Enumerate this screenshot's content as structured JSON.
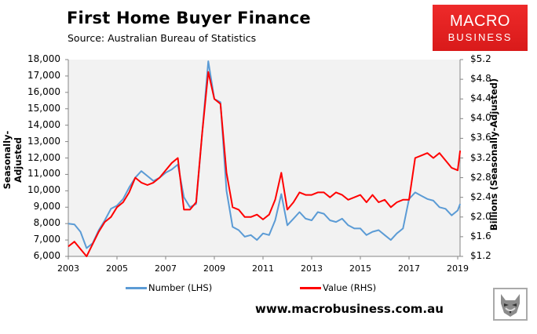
{
  "header": {
    "title": "First Home Buyer Finance",
    "subtitle": "Source: Australian Bureau of Statistics"
  },
  "logo": {
    "line1": "MACRO",
    "line2": "BUSINESS",
    "bg_color": "#e32222"
  },
  "footer": {
    "website": "www.macrobusiness.com.au",
    "mascot_icon": "wolf-icon"
  },
  "axes": {
    "left_label": "Seasonally-Adjusted",
    "right_label": "Billions (Seasonally-Adjusted)",
    "left_ticks": [
      "18,000",
      "17,000",
      "16,000",
      "15,000",
      "14,000",
      "13,000",
      "12,000",
      "11,000",
      "10,000",
      "9,000",
      "8,000",
      "7,000",
      "6,000"
    ],
    "right_ticks": [
      "$5.2",
      "$4.8",
      "$4.4",
      "$4.0",
      "$3.6",
      "$3.2",
      "$2.8",
      "$2.4",
      "$2.0",
      "$1.6",
      "$1.2"
    ],
    "x_ticks": [
      "2003",
      "2005",
      "2007",
      "2009",
      "2011",
      "2013",
      "2015",
      "2017",
      "2019"
    ]
  },
  "legend": {
    "number_label": "Number (LHS)",
    "value_label": "Value (RHS)"
  },
  "chart_data": {
    "type": "line",
    "title": "First Home Buyer Finance",
    "subtitle": "Source: Australian Bureau of Statistics",
    "xlabel": "",
    "ylabel": "Seasonally-Adjusted",
    "ylabel_right": "Billions (Seasonally-Adjusted)",
    "ylim": [
      6000,
      18000
    ],
    "ylim_right": [
      1.2,
      5.2
    ],
    "xlim": [
      2003.0,
      2019.1
    ],
    "grid": false,
    "legend_position": "bottom",
    "x": [
      2003.0,
      2003.25,
      2003.5,
      2003.75,
      2004.0,
      2004.25,
      2004.5,
      2004.75,
      2005.0,
      2005.25,
      2005.5,
      2005.75,
      2006.0,
      2006.25,
      2006.5,
      2006.75,
      2007.0,
      2007.25,
      2007.5,
      2007.75,
      2008.0,
      2008.25,
      2008.5,
      2008.75,
      2009.0,
      2009.25,
      2009.5,
      2009.75,
      2010.0,
      2010.25,
      2010.5,
      2010.75,
      2011.0,
      2011.25,
      2011.5,
      2011.75,
      2012.0,
      2012.25,
      2012.5,
      2012.75,
      2013.0,
      2013.25,
      2013.5,
      2013.75,
      2014.0,
      2014.25,
      2014.5,
      2014.75,
      2015.0,
      2015.25,
      2015.5,
      2015.75,
      2016.0,
      2016.25,
      2016.5,
      2016.75,
      2017.0,
      2017.25,
      2017.5,
      2017.75,
      2018.0,
      2018.25,
      2018.5,
      2018.75,
      2019.0,
      2019.1
    ],
    "series": [
      {
        "name": "Number (LHS)",
        "axis": "left",
        "color": "#5b9bd5",
        "values": [
          8000,
          7950,
          7500,
          6500,
          6800,
          7600,
          8200,
          8900,
          9100,
          9500,
          10200,
          10800,
          11200,
          10900,
          10600,
          10800,
          11100,
          11300,
          11600,
          9600,
          9000,
          9200,
          13500,
          17900,
          15600,
          15400,
          10000,
          7800,
          7600,
          7200,
          7300,
          7000,
          7400,
          7300,
          8200,
          9800,
          7900,
          8300,
          8700,
          8300,
          8200,
          8700,
          8600,
          8200,
          8100,
          8300,
          7900,
          7700,
          7700,
          7300,
          7500,
          7600,
          7300,
          7000,
          7400,
          7700,
          9500,
          9900,
          9700,
          9500,
          9400,
          9000,
          8900,
          8500,
          8800,
          9200
        ],
        "approximate": true
      },
      {
        "name": "Value (RHS)",
        "axis": "right",
        "color": "#ff0000",
        "values": [
          1.4,
          1.5,
          1.35,
          1.2,
          1.45,
          1.7,
          1.9,
          2.0,
          2.2,
          2.3,
          2.5,
          2.8,
          2.7,
          2.65,
          2.7,
          2.8,
          2.95,
          3.1,
          3.2,
          2.15,
          2.15,
          2.3,
          3.7,
          4.95,
          4.4,
          4.3,
          2.9,
          2.2,
          2.15,
          2.0,
          2.0,
          2.05,
          1.95,
          2.05,
          2.35,
          2.9,
          2.15,
          2.3,
          2.5,
          2.45,
          2.45,
          2.5,
          2.5,
          2.4,
          2.5,
          2.45,
          2.35,
          2.4,
          2.45,
          2.3,
          2.45,
          2.3,
          2.35,
          2.2,
          2.3,
          2.35,
          2.35,
          3.2,
          3.25,
          3.3,
          3.2,
          3.3,
          3.15,
          3.0,
          2.95,
          3.35
        ],
        "approximate": true
      }
    ]
  }
}
